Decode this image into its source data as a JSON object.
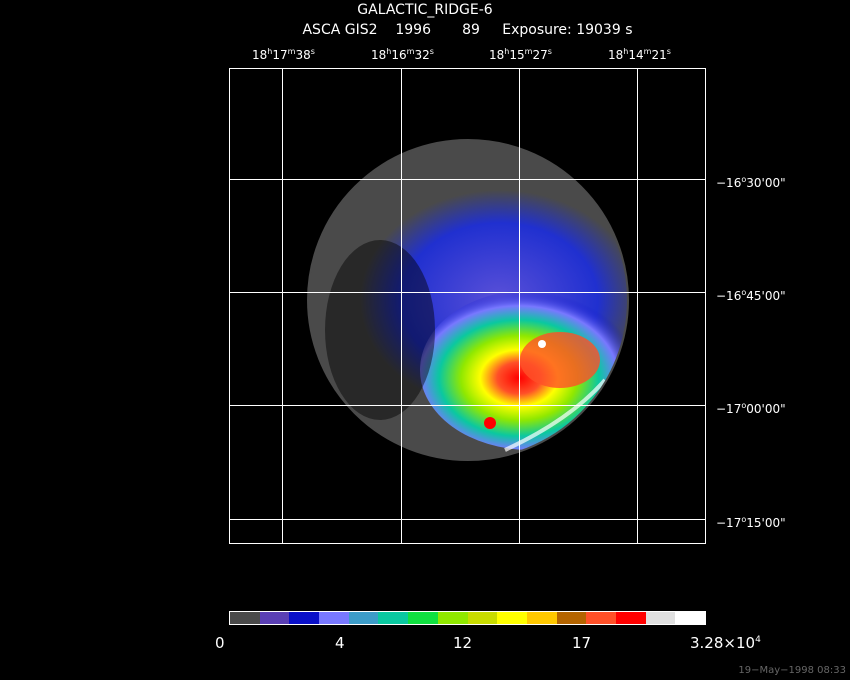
{
  "header": {
    "title": "GALACTIC_RIDGE-6",
    "instrument": "ASCA GIS2",
    "year": "1996",
    "sequence": "89",
    "exposure": "Exposure: 19039 s"
  },
  "ra_axis": [
    {
      "h": "18",
      "m": "17",
      "s": "38"
    },
    {
      "h": "18",
      "m": "16",
      "s": "32"
    },
    {
      "h": "18",
      "m": "15",
      "s": "27"
    },
    {
      "h": "18",
      "m": "14",
      "s": "21"
    }
  ],
  "dec_axis": [
    {
      "d": "−16",
      "m": "30",
      "s": "00\""
    },
    {
      "d": "−16",
      "m": "45",
      "s": "00\""
    },
    {
      "d": "−17",
      "m": "00",
      "s": "00\""
    },
    {
      "d": "−17",
      "m": "15",
      "s": "00\""
    }
  ],
  "colorbar": {
    "colors": [
      "#4a4a4a",
      "#5a3fb4",
      "#0a10c8",
      "#7878ff",
      "#3c9cc8",
      "#0ac8a0",
      "#10e040",
      "#90e800",
      "#c8dc00",
      "#ffff00",
      "#ffc800",
      "#b46400",
      "#ff5028",
      "#ff0000",
      "#e0e0e0",
      "#ffffff"
    ],
    "labels": [
      "0",
      "4",
      "12",
      "17",
      "3.28×10"
    ],
    "max_exp": "4"
  },
  "timestamp": "19−May−1998 08:33"
}
